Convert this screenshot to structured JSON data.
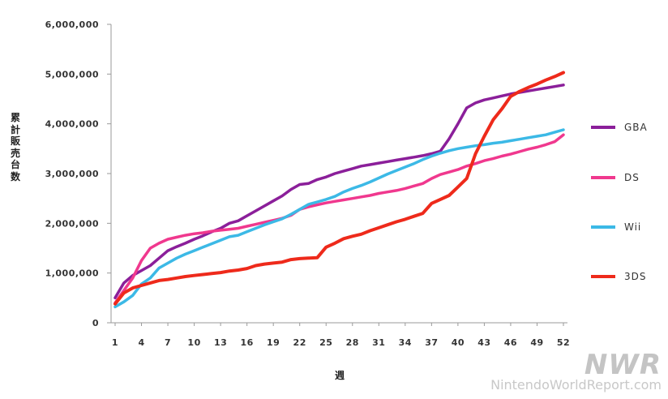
{
  "chart_data": {
    "type": "line",
    "title": "",
    "xlabel": "週",
    "ylabel": "累計販売台数",
    "xlim": [
      1,
      52
    ],
    "ylim": [
      0,
      6000000
    ],
    "x_ticks": [
      1,
      4,
      7,
      10,
      13,
      16,
      19,
      22,
      25,
      28,
      31,
      34,
      37,
      40,
      43,
      46,
      49,
      52
    ],
    "x_tick_labels": [
      "1",
      "4",
      "7",
      "10",
      "13",
      "16",
      "19",
      "22",
      "25",
      "28",
      "31",
      "34",
      "37",
      "40",
      "43",
      "46",
      "49",
      "52"
    ],
    "y_ticks": [
      0,
      1000000,
      2000000,
      3000000,
      4000000,
      5000000,
      6000000
    ],
    "y_tick_labels": [
      "0",
      "1,000,000",
      "2,000,000",
      "3,000,000",
      "4,000,000",
      "5,000,000",
      "6,000,000"
    ],
    "grid": false,
    "legend_position": "right",
    "series": [
      {
        "name": "GBA",
        "color": "#8b1f9a",
        "x": [
          1,
          2,
          3,
          4,
          5,
          6,
          7,
          8,
          9,
          10,
          11,
          12,
          13,
          14,
          15,
          16,
          17,
          18,
          19,
          20,
          21,
          22,
          23,
          24,
          25,
          26,
          27,
          28,
          29,
          30,
          31,
          32,
          33,
          34,
          35,
          36,
          37,
          38,
          39,
          40,
          41,
          42,
          43,
          44,
          45,
          46,
          47,
          48,
          49,
          50,
          51,
          52
        ],
        "values": [
          500000,
          800000,
          950000,
          1050000,
          1150000,
          1300000,
          1450000,
          1530000,
          1600000,
          1680000,
          1750000,
          1830000,
          1900000,
          2000000,
          2050000,
          2150000,
          2250000,
          2350000,
          2450000,
          2550000,
          2680000,
          2780000,
          2800000,
          2880000,
          2930000,
          3000000,
          3050000,
          3100000,
          3150000,
          3180000,
          3210000,
          3240000,
          3270000,
          3300000,
          3330000,
          3360000,
          3400000,
          3450000,
          3700000,
          4000000,
          4320000,
          4420000,
          4480000,
          4520000,
          4560000,
          4600000,
          4630000,
          4660000,
          4690000,
          4720000,
          4750000,
          4780000
        ]
      },
      {
        "name": "DS",
        "color": "#f0388e",
        "x": [
          1,
          2,
          3,
          4,
          5,
          6,
          7,
          8,
          9,
          10,
          11,
          12,
          13,
          14,
          15,
          16,
          17,
          18,
          19,
          20,
          21,
          22,
          23,
          24,
          25,
          26,
          27,
          28,
          29,
          30,
          31,
          32,
          33,
          34,
          35,
          36,
          37,
          38,
          39,
          40,
          41,
          42,
          43,
          44,
          45,
          46,
          47,
          48,
          49,
          50,
          51,
          52
        ],
        "values": [
          400000,
          650000,
          900000,
          1250000,
          1500000,
          1600000,
          1680000,
          1720000,
          1760000,
          1790000,
          1810000,
          1840000,
          1860000,
          1880000,
          1900000,
          1940000,
          1980000,
          2020000,
          2060000,
          2100000,
          2160000,
          2280000,
          2330000,
          2370000,
          2410000,
          2440000,
          2470000,
          2500000,
          2530000,
          2560000,
          2600000,
          2630000,
          2660000,
          2700000,
          2750000,
          2800000,
          2900000,
          2980000,
          3030000,
          3080000,
          3150000,
          3200000,
          3260000,
          3300000,
          3350000,
          3390000,
          3440000,
          3490000,
          3530000,
          3580000,
          3640000,
          3780000
        ]
      },
      {
        "name": "Wii",
        "color": "#3cb9e6",
        "x": [
          1,
          2,
          3,
          4,
          5,
          6,
          7,
          8,
          9,
          10,
          11,
          12,
          13,
          14,
          15,
          16,
          17,
          18,
          19,
          20,
          21,
          22,
          23,
          24,
          25,
          26,
          27,
          28,
          29,
          30,
          31,
          32,
          33,
          34,
          35,
          36,
          37,
          38,
          39,
          40,
          41,
          42,
          43,
          44,
          45,
          46,
          47,
          48,
          49,
          50,
          51,
          52
        ],
        "values": [
          320000,
          420000,
          550000,
          780000,
          900000,
          1100000,
          1200000,
          1300000,
          1380000,
          1450000,
          1520000,
          1590000,
          1660000,
          1730000,
          1760000,
          1830000,
          1900000,
          1970000,
          2030000,
          2090000,
          2180000,
          2280000,
          2380000,
          2430000,
          2480000,
          2540000,
          2630000,
          2700000,
          2760000,
          2830000,
          2910000,
          2990000,
          3060000,
          3130000,
          3200000,
          3280000,
          3350000,
          3410000,
          3460000,
          3500000,
          3530000,
          3560000,
          3580000,
          3610000,
          3630000,
          3660000,
          3690000,
          3720000,
          3750000,
          3780000,
          3830000,
          3880000
        ]
      },
      {
        "name": "3DS",
        "color": "#ee2a1b",
        "x": [
          1,
          2,
          3,
          4,
          5,
          6,
          7,
          8,
          9,
          10,
          11,
          12,
          13,
          14,
          15,
          16,
          17,
          18,
          19,
          20,
          21,
          22,
          23,
          24,
          25,
          26,
          27,
          28,
          29,
          30,
          31,
          32,
          33,
          34,
          35,
          36,
          37,
          38,
          39,
          40,
          41,
          42,
          43,
          44,
          45,
          46,
          47,
          48,
          49,
          50,
          51,
          52
        ],
        "values": [
          380000,
          600000,
          700000,
          750000,
          800000,
          850000,
          870000,
          900000,
          930000,
          950000,
          970000,
          990000,
          1010000,
          1040000,
          1060000,
          1090000,
          1150000,
          1180000,
          1200000,
          1220000,
          1270000,
          1290000,
          1300000,
          1310000,
          1520000,
          1600000,
          1690000,
          1740000,
          1780000,
          1850000,
          1910000,
          1970000,
          2030000,
          2080000,
          2140000,
          2200000,
          2400000,
          2480000,
          2560000,
          2730000,
          2900000,
          3400000,
          3750000,
          4080000,
          4300000,
          4550000,
          4650000,
          4730000,
          4800000,
          4880000,
          4950000,
          5030000
        ]
      }
    ]
  },
  "watermark": {
    "logo": "NWR",
    "site": "NintendoWorldReport.com"
  }
}
